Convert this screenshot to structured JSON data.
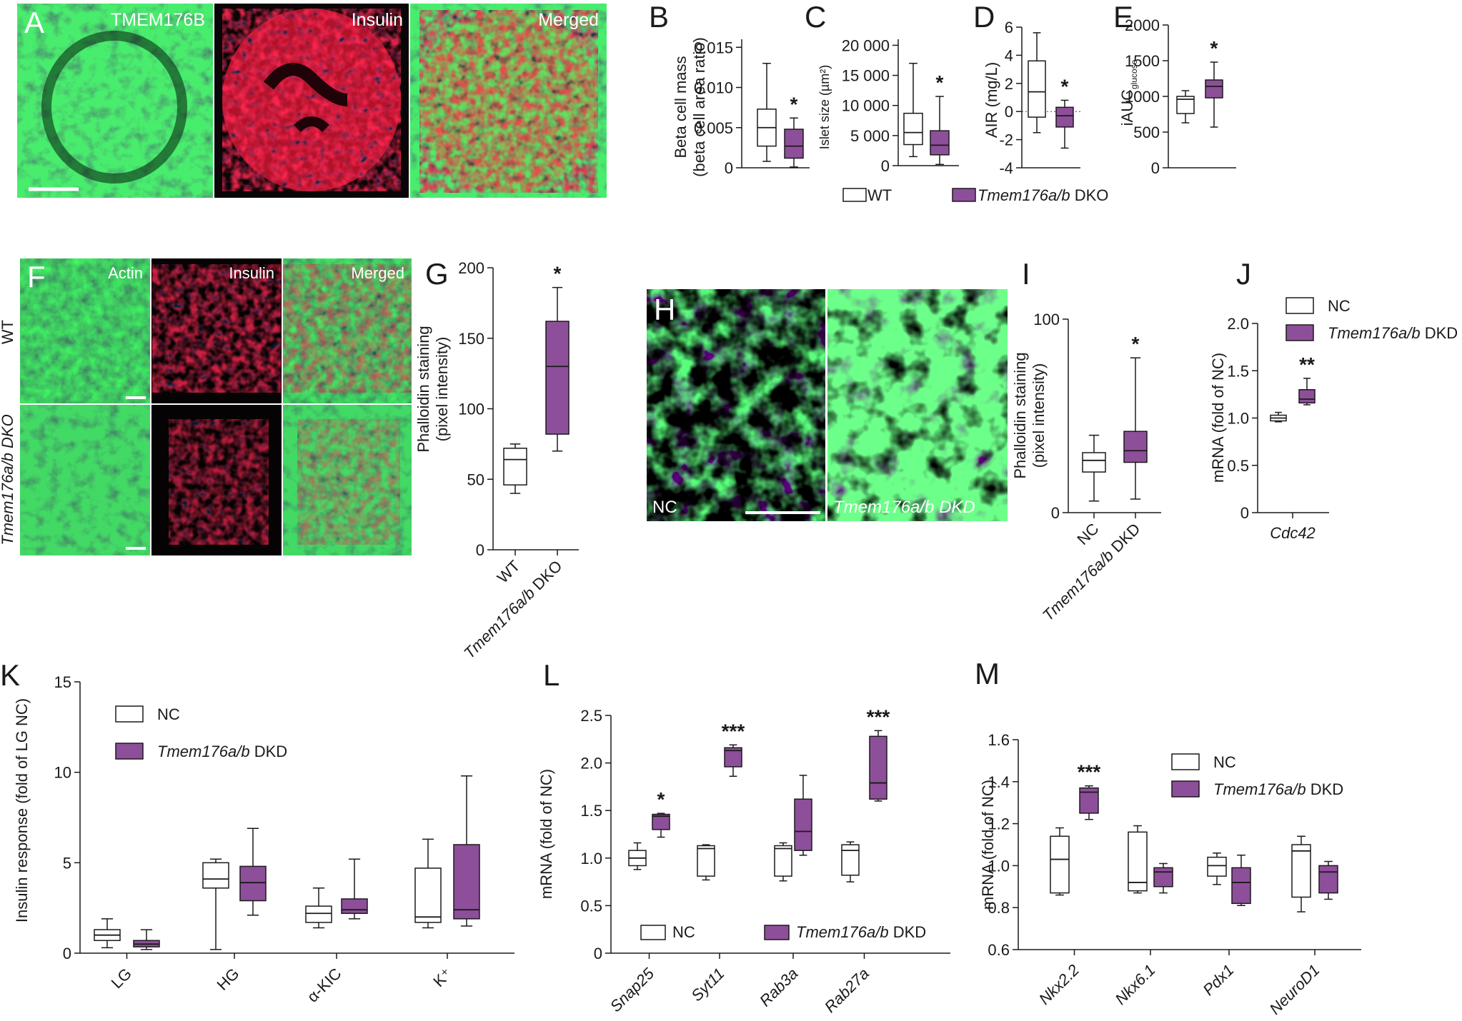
{
  "colors": {
    "dko": "#8e4f9a",
    "wt": "#ffffff",
    "fluor_green": "#1ea24c",
    "fluor_red": "#e0203a",
    "axis": "#1a1a1a"
  },
  "legend": {
    "wt": "WT",
    "dko_gene": "Tmem176a/b",
    "dko_suffix": " DKO",
    "nc": "NC",
    "dkd_gene": "Tmem176a/b",
    "dkd_suffix": " DKD"
  },
  "panel_A": {
    "letter": "A",
    "labels": [
      "TMEM176B",
      "Insulin",
      "Merged"
    ]
  },
  "panel_F": {
    "letter": "F",
    "labels": [
      "Actin",
      "Insulin",
      "Merged"
    ],
    "rows": [
      "WT",
      "Tmem176a/b DKO"
    ]
  },
  "panel_H": {
    "letter": "H",
    "labels": [
      "NC",
      "Tmem176a/b DKD"
    ]
  },
  "chart_data": [
    {
      "id": "B",
      "type": "box",
      "ylabel_lines": [
        "Beta cell mass",
        "(beta cell area ratio)"
      ],
      "yticks": [
        "0.015",
        "0.010",
        "0.005",
        "0"
      ],
      "ylim": [
        0,
        0.016
      ],
      "groups": [
        {
          "name": "WT",
          "min": 0.0008,
          "q1": 0.0027,
          "median": 0.005,
          "q3": 0.0073,
          "max": 0.013
        },
        {
          "name": "Tmem176a/b DKO",
          "min": 0.0001,
          "q1": 0.0012,
          "median": 0.0027,
          "q3": 0.0048,
          "max": 0.0062
        }
      ],
      "sig": [
        "",
        "*"
      ]
    },
    {
      "id": "C",
      "type": "box",
      "ylabel": "Islet size (µm²)",
      "yticks": [
        "20 000",
        "15 000",
        "10 000",
        "5 000",
        "0"
      ],
      "ylim": [
        0,
        21000
      ],
      "groups": [
        {
          "name": "WT",
          "min": 1500,
          "q1": 3500,
          "median": 5500,
          "q3": 8700,
          "max": 17000
        },
        {
          "name": "Tmem176a/b DKO",
          "min": 200,
          "q1": 1800,
          "median": 3400,
          "q3": 5800,
          "max": 11500
        }
      ],
      "sig": [
        "",
        "*"
      ]
    },
    {
      "id": "D",
      "type": "box",
      "ylabel": "AIR (mg/L)",
      "yticks": [
        "6",
        "4",
        "2",
        "0",
        "-2",
        "-4"
      ],
      "ylim": [
        -4,
        6
      ],
      "groups": [
        {
          "name": "WT",
          "min": -1.5,
          "q1": -0.4,
          "median": 1.4,
          "q3": 3.6,
          "max": 5.6
        },
        {
          "name": "Tmem176a/b DKO",
          "min": -2.6,
          "q1": -1.1,
          "median": -0.3,
          "q3": 0.3,
          "max": 0.8
        }
      ],
      "sig": [
        "",
        "*"
      ]
    },
    {
      "id": "E",
      "type": "box",
      "ylabel": "iAUC",
      "ylabel_sub": "glucose",
      "yticks": [
        "2000",
        "1500",
        "1000",
        "500",
        "0"
      ],
      "ylim": [
        0,
        2000
      ],
      "groups": [
        {
          "name": "WT",
          "min": 630,
          "q1": 760,
          "median": 960,
          "q3": 1000,
          "max": 1080
        },
        {
          "name": "Tmem176a/b DKO",
          "min": 570,
          "q1": 980,
          "median": 1140,
          "q3": 1230,
          "max": 1480
        }
      ],
      "sig": [
        "",
        "*"
      ]
    },
    {
      "id": "G",
      "type": "box",
      "ylabel_lines": [
        "Phalloidin staining",
        "(pixel intensity)"
      ],
      "yticks": [
        "200",
        "150",
        "100",
        "50",
        "0"
      ],
      "ylim": [
        0,
        200
      ],
      "categories": [
        "WT",
        "Tmem176a/b DKO"
      ],
      "groups": [
        {
          "name": "WT",
          "min": 40,
          "q1": 46,
          "median": 64,
          "q3": 72,
          "max": 75
        },
        {
          "name": "Tmem176a/b DKO",
          "min": 70,
          "q1": 82,
          "median": 130,
          "q3": 162,
          "max": 186
        }
      ],
      "sig": [
        "",
        "*"
      ]
    },
    {
      "id": "I",
      "type": "box",
      "ylabel_lines": [
        "Phalloidin staining",
        "(pixel intensity)"
      ],
      "yticks": [
        "100",
        "0"
      ],
      "ylim": [
        0,
        100
      ],
      "categories": [
        "NC",
        "Tmem176a/b DKD"
      ],
      "groups": [
        {
          "name": "NC",
          "min": 6,
          "q1": 21,
          "median": 27,
          "q3": 31,
          "max": 40
        },
        {
          "name": "Tmem176a/b DKD",
          "min": 7,
          "q1": 26,
          "median": 32,
          "q3": 42,
          "max": 80
        }
      ],
      "sig": [
        "",
        "*"
      ]
    },
    {
      "id": "J",
      "type": "box",
      "ylabel": "mRNA (fold of NC)",
      "yticks": [
        "2.0",
        "1.5",
        "1.0",
        "0.5",
        "0"
      ],
      "ylim": [
        0,
        2
      ],
      "categories": [
        "Cdc42"
      ],
      "groups": [
        {
          "name": "NC",
          "min": 0.96,
          "q1": 0.97,
          "median": 1.0,
          "q3": 1.03,
          "max": 1.06
        },
        {
          "name": "Tmem176a/b DKD",
          "min": 1.14,
          "q1": 1.16,
          "median": 1.2,
          "q3": 1.3,
          "max": 1.42
        }
      ],
      "sig": [
        "",
        "**"
      ]
    },
    {
      "id": "K",
      "type": "box",
      "ylabel": "Insulin response (fold of LG NC)",
      "yticks": [
        "15",
        "10",
        "5",
        "0"
      ],
      "ylim": [
        0,
        15
      ],
      "categories": [
        "LG",
        "HG",
        "α-KIC",
        "K⁺"
      ],
      "series": [
        {
          "name": "NC",
          "groups": [
            {
              "min": 0.3,
              "q1": 0.7,
              "median": 1.0,
              "q3": 1.3,
              "max": 1.9
            },
            {
              "min": 0.2,
              "q1": 3.6,
              "median": 4.1,
              "q3": 5.0,
              "max": 5.2
            },
            {
              "min": 1.4,
              "q1": 1.7,
              "median": 2.2,
              "q3": 2.6,
              "max": 3.6
            },
            {
              "min": 1.4,
              "q1": 1.7,
              "median": 2.0,
              "q3": 4.7,
              "max": 6.3
            }
          ]
        },
        {
          "name": "Tmem176a/b DKD",
          "groups": [
            {
              "min": 0.2,
              "q1": 0.35,
              "median": 0.5,
              "q3": 0.7,
              "max": 1.3
            },
            {
              "min": 2.1,
              "q1": 2.9,
              "median": 3.9,
              "q3": 4.8,
              "max": 6.9
            },
            {
              "min": 1.9,
              "q1": 2.2,
              "median": 2.4,
              "q3": 3.0,
              "max": 5.2
            },
            {
              "min": 1.5,
              "q1": 1.9,
              "median": 2.4,
              "q3": 6.0,
              "max": 9.8
            }
          ]
        }
      ],
      "sig": [
        "",
        "",
        "",
        ""
      ]
    },
    {
      "id": "L",
      "type": "box",
      "ylabel": "mRNA (fold of NC)",
      "yticks": [
        "2.5",
        "2.0",
        "1.5",
        "1.0",
        "0.5",
        "0"
      ],
      "ylim": [
        0,
        2.5
      ],
      "categories": [
        "Snap25",
        "Syt11",
        "Rab3a",
        "Rab27a"
      ],
      "series": [
        {
          "name": "NC",
          "groups": [
            {
              "min": 0.88,
              "q1": 0.92,
              "median": 1.0,
              "q3": 1.08,
              "max": 1.16
            },
            {
              "min": 0.77,
              "q1": 0.81,
              "median": 1.1,
              "q3": 1.13,
              "max": 1.14
            },
            {
              "min": 0.76,
              "q1": 0.81,
              "median": 1.1,
              "q3": 1.13,
              "max": 1.16
            },
            {
              "min": 0.75,
              "q1": 0.82,
              "median": 1.08,
              "q3": 1.14,
              "max": 1.17
            }
          ]
        },
        {
          "name": "Tmem176a/b DKD",
          "groups": [
            {
              "min": 1.22,
              "q1": 1.3,
              "median": 1.44,
              "q3": 1.46,
              "max": 1.47
            },
            {
              "min": 1.86,
              "q1": 1.96,
              "median": 2.13,
              "q3": 2.16,
              "max": 2.19
            },
            {
              "min": 1.03,
              "q1": 1.08,
              "median": 1.28,
              "q3": 1.62,
              "max": 1.87
            },
            {
              "min": 1.6,
              "q1": 1.62,
              "median": 1.79,
              "q3": 2.28,
              "max": 2.34
            }
          ]
        }
      ],
      "sig": [
        "*",
        "***",
        "",
        "***"
      ]
    },
    {
      "id": "M",
      "type": "box",
      "ylabel": "mRNA (fold of NC)",
      "yticks": [
        "1.6",
        "1.4",
        "1.2",
        "1.0",
        "0.8",
        "0.6"
      ],
      "ylim": [
        0.6,
        1.6
      ],
      "categories": [
        "Nkx2.2",
        "Nkx6.1",
        "Pdx1",
        "NeuroD1"
      ],
      "series": [
        {
          "name": "NC",
          "groups": [
            {
              "min": 0.86,
              "q1": 0.87,
              "median": 1.03,
              "q3": 1.14,
              "max": 1.18
            },
            {
              "min": 0.87,
              "q1": 0.88,
              "median": 0.92,
              "q3": 1.16,
              "max": 1.19
            },
            {
              "min": 0.91,
              "q1": 0.95,
              "median": 1.0,
              "q3": 1.04,
              "max": 1.06
            },
            {
              "min": 0.78,
              "q1": 0.85,
              "median": 1.07,
              "q3": 1.1,
              "max": 1.14
            }
          ]
        },
        {
          "name": "Tmem176a/b DKD",
          "groups": [
            {
              "min": 1.22,
              "q1": 1.25,
              "median": 1.35,
              "q3": 1.37,
              "max": 1.38
            },
            {
              "min": 0.87,
              "q1": 0.9,
              "median": 0.97,
              "q3": 0.99,
              "max": 1.01
            },
            {
              "min": 0.81,
              "q1": 0.82,
              "median": 0.92,
              "q3": 0.99,
              "max": 1.05
            },
            {
              "min": 0.84,
              "q1": 0.87,
              "median": 0.97,
              "q3": 1.0,
              "max": 1.02
            }
          ]
        }
      ],
      "sig": [
        "***",
        "",
        "",
        ""
      ]
    }
  ]
}
